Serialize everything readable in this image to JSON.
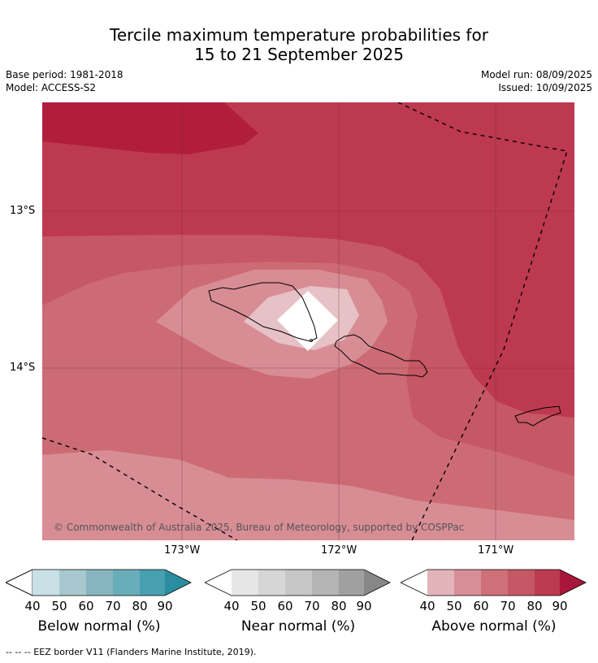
{
  "title_line1": "Tercile maximum temperature probabilities for",
  "title_line2": "15 to 21 September 2025",
  "base_period": "Base period: 1981-2018",
  "model": "Model: ACCESS-S2",
  "model_run": "Model run: 08/09/2025",
  "issued": "Issued: 10/09/2025",
  "map": {
    "lat_labels": [
      "13°S",
      "14°S"
    ],
    "lon_labels": [
      "173°W",
      "172°W",
      "171°W"
    ],
    "copyright": "© Commonwealth of Australia 2025, Bureau of Meteorology, supported by COSPPac"
  },
  "colorbars": [
    {
      "title": "Below normal (%)",
      "ticks": [
        "40",
        "50",
        "60",
        "70",
        "80",
        "90"
      ],
      "colors": [
        "#c9e1e6",
        "#a6c8ce",
        "#87b5bf",
        "#6aadba",
        "#47a0b0",
        "#2a8ea0"
      ]
    },
    {
      "title": "Near normal (%)",
      "ticks": [
        "40",
        "50",
        "60",
        "70",
        "80",
        "90"
      ],
      "colors": [
        "#e6e6e6",
        "#d6d6d6",
        "#c6c6c6",
        "#b4b4b4",
        "#a0a0a0",
        "#878787"
      ]
    },
    {
      "title": "Above normal (%)",
      "ticks": [
        "40",
        "50",
        "60",
        "70",
        "80",
        "90"
      ],
      "colors": [
        "#e2b4b9",
        "#d68f97",
        "#cf6f78",
        "#c65764",
        "#bd3950",
        "#a8163a"
      ]
    }
  ],
  "footnote": "--  --  -- EEZ border V11 (Flanders Marine Institute, 2019)."
}
